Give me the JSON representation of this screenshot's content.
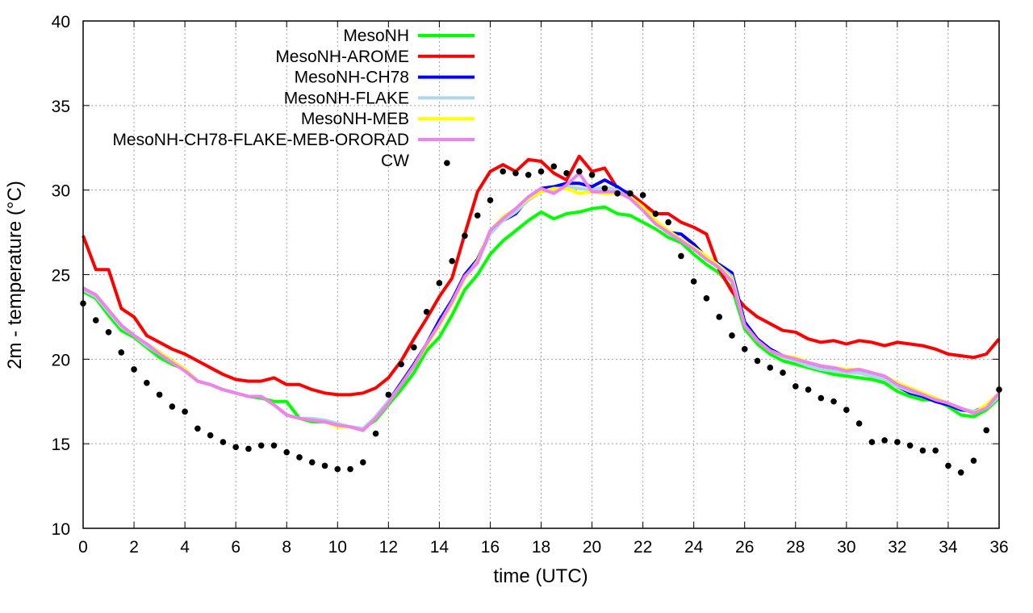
{
  "chart_data": {
    "type": "line",
    "xlabel": "time (UTC)",
    "ylabel": "2m - temperature (°C)",
    "xlim": [
      0,
      36
    ],
    "ylim": [
      10,
      40
    ],
    "xticks": [
      "0",
      "2",
      "4",
      "6",
      "8",
      "10",
      "12",
      "14",
      "16",
      "18",
      "20",
      "22",
      "24",
      "26",
      "28",
      "30",
      "32",
      "34",
      "36"
    ],
    "yticks": [
      "10",
      "15",
      "20",
      "25",
      "30",
      "35",
      "40"
    ],
    "grid": true,
    "legend_position": "top-left",
    "x": [
      0,
      0.5,
      1,
      1.5,
      2,
      2.5,
      3,
      3.5,
      4,
      4.5,
      5,
      5.5,
      6,
      6.5,
      7,
      7.5,
      8,
      8.5,
      9,
      9.5,
      10,
      10.5,
      11,
      11.5,
      12,
      12.5,
      13,
      13.5,
      14,
      14.5,
      15,
      15.5,
      16,
      16.5,
      17,
      17.5,
      18,
      18.5,
      19,
      19.5,
      20,
      20.5,
      21,
      21.5,
      22,
      22.5,
      23,
      23.5,
      24,
      24.5,
      25,
      25.5,
      26,
      26.5,
      27,
      27.5,
      28,
      28.5,
      29,
      29.5,
      30,
      30.5,
      31,
      31.5,
      32,
      32.5,
      33,
      33.5,
      34,
      34.5,
      35,
      35.5,
      36
    ],
    "series": [
      {
        "name": "MesoNH",
        "color": "#00ff00",
        "style": "line",
        "values": [
          24.0,
          23.6,
          22.6,
          21.7,
          21.3,
          20.7,
          20.1,
          19.7,
          19.4,
          18.7,
          18.5,
          18.2,
          18.0,
          17.8,
          17.7,
          17.5,
          17.5,
          16.5,
          16.3,
          16.3,
          16.1,
          16.0,
          15.9,
          16.4,
          17.3,
          18.2,
          19.2,
          20.5,
          21.3,
          22.6,
          24.1,
          25.0,
          26.2,
          27.0,
          27.6,
          28.2,
          28.7,
          28.3,
          28.6,
          28.7,
          28.9,
          29.0,
          28.6,
          28.5,
          28.1,
          27.7,
          27.2,
          26.9,
          26.2,
          25.6,
          25.1,
          24.2,
          21.8,
          20.9,
          20.3,
          19.9,
          19.7,
          19.5,
          19.3,
          19.1,
          19.0,
          18.9,
          18.8,
          18.6,
          18.1,
          17.8,
          17.6,
          17.6,
          17.2,
          16.7,
          16.6,
          17.0,
          17.7
        ]
      },
      {
        "name": "MesoNH-AROME",
        "color": "#ff0000",
        "style": "line",
        "values": [
          27.3,
          25.3,
          25.3,
          23.0,
          22.5,
          21.4,
          21.0,
          20.6,
          20.3,
          19.9,
          19.5,
          19.1,
          18.8,
          18.7,
          18.7,
          18.9,
          18.5,
          18.5,
          18.2,
          18.0,
          17.9,
          17.9,
          18.0,
          18.3,
          18.9,
          19.9,
          21.2,
          22.4,
          23.7,
          24.8,
          27.4,
          29.9,
          31.1,
          31.5,
          31.1,
          31.8,
          31.7,
          31.0,
          30.6,
          32.0,
          31.1,
          31.3,
          30.1,
          29.8,
          29.2,
          28.6,
          28.6,
          28.1,
          27.8,
          27.4,
          25.3,
          24.0,
          23.1,
          22.5,
          22.1,
          21.7,
          21.6,
          21.2,
          21.0,
          21.1,
          20.9,
          21.1,
          21.0,
          20.8,
          21.0,
          20.9,
          20.8,
          20.6,
          20.3,
          20.2,
          20.1,
          20.3,
          21.2
        ]
      },
      {
        "name": "MesoNH-CH78",
        "color": "#0000ff",
        "style": "line",
        "values": [
          24.2,
          23.8,
          22.9,
          22.0,
          21.4,
          20.9,
          20.4,
          19.9,
          19.4,
          18.7,
          18.5,
          18.2,
          18.0,
          17.8,
          17.8,
          17.3,
          16.7,
          16.5,
          16.4,
          16.3,
          16.1,
          16.0,
          15.8,
          16.6,
          17.5,
          18.6,
          19.7,
          20.9,
          22.3,
          23.5,
          25.0,
          25.9,
          27.5,
          28.2,
          28.6,
          29.5,
          30.1,
          30.2,
          30.4,
          30.4,
          30.2,
          30.6,
          30.2,
          29.7,
          28.9,
          28.1,
          27.5,
          27.4,
          26.8,
          26.0,
          25.6,
          25.1,
          22.2,
          21.2,
          20.6,
          20.2,
          20.0,
          19.7,
          19.5,
          19.4,
          19.2,
          19.2,
          19.0,
          18.8,
          18.4,
          18.0,
          17.8,
          17.5,
          17.3,
          17.0,
          16.9,
          17.2,
          17.8
        ]
      },
      {
        "name": "MesoNH-FLAKE",
        "color": "#add8e6",
        "style": "line",
        "values": [
          24.1,
          23.7,
          22.8,
          21.9,
          21.4,
          20.8,
          20.3,
          19.8,
          19.4,
          18.7,
          18.5,
          18.2,
          18.0,
          17.8,
          17.8,
          17.3,
          16.7,
          16.5,
          16.5,
          16.4,
          16.2,
          16.0,
          15.9,
          16.6,
          17.5,
          18.5,
          19.6,
          20.8,
          22.1,
          23.3,
          24.8,
          25.8,
          27.4,
          28.2,
          28.7,
          29.4,
          29.9,
          30.0,
          30.2,
          30.1,
          30.0,
          30.2,
          30.0,
          29.5,
          28.9,
          28.1,
          27.4,
          27.1,
          26.6,
          25.9,
          25.5,
          24.9,
          22.0,
          21.1,
          20.5,
          20.1,
          19.9,
          19.6,
          19.4,
          19.3,
          19.2,
          19.2,
          19.0,
          18.8,
          18.4,
          18.1,
          17.9,
          17.7,
          17.4,
          17.1,
          16.9,
          17.1,
          17.8
        ]
      },
      {
        "name": "MesoNH-MEB",
        "color": "#ffff00",
        "style": "line",
        "values": [
          24.2,
          23.8,
          22.9,
          22.0,
          21.4,
          20.9,
          20.4,
          19.9,
          19.4,
          18.7,
          18.5,
          18.2,
          18.0,
          17.8,
          17.8,
          17.3,
          16.7,
          16.5,
          16.4,
          16.3,
          16.0,
          16.0,
          15.8,
          16.5,
          17.4,
          18.5,
          19.6,
          20.8,
          22.0,
          23.3,
          24.8,
          25.8,
          27.6,
          28.4,
          28.9,
          29.5,
          29.9,
          30.1,
          30.1,
          29.8,
          29.9,
          29.8,
          29.8,
          29.6,
          29.0,
          28.2,
          27.6,
          27.1,
          26.6,
          26.1,
          25.5,
          24.7,
          22.0,
          21.1,
          20.5,
          20.2,
          20.1,
          19.8,
          19.6,
          19.5,
          19.4,
          19.4,
          19.2,
          19.0,
          18.6,
          18.3,
          18.0,
          17.7,
          17.4,
          17.1,
          16.8,
          17.3,
          18.0
        ]
      },
      {
        "name": "MesoNH-CH78-FLAKE-MEB-ORORAD",
        "color": "#ee82ee",
        "style": "line",
        "values": [
          24.2,
          23.8,
          22.9,
          22.0,
          21.4,
          20.9,
          20.3,
          19.8,
          19.3,
          18.7,
          18.5,
          18.2,
          18.0,
          17.8,
          17.8,
          17.3,
          16.7,
          16.5,
          16.4,
          16.3,
          16.1,
          16.0,
          15.8,
          16.5,
          17.4,
          18.5,
          19.6,
          20.9,
          22.1,
          23.4,
          24.9,
          25.7,
          27.6,
          28.3,
          28.9,
          29.6,
          30.1,
          29.8,
          30.3,
          31.0,
          29.9,
          29.9,
          29.9,
          29.5,
          28.8,
          28.0,
          27.5,
          27.0,
          26.5,
          25.9,
          25.4,
          24.6,
          22.0,
          21.1,
          20.5,
          20.2,
          20.0,
          19.8,
          19.6,
          19.5,
          19.3,
          19.4,
          19.2,
          19.0,
          18.5,
          18.2,
          17.9,
          17.6,
          17.4,
          17.1,
          16.8,
          17.1,
          18.0
        ]
      },
      {
        "name": "CW",
        "color": "#000000",
        "style": "points",
        "values": [
          23.3,
          22.3,
          21.6,
          20.4,
          19.4,
          18.6,
          17.9,
          17.2,
          16.9,
          15.9,
          15.5,
          15.1,
          14.8,
          14.7,
          14.9,
          14.9,
          14.5,
          14.2,
          13.9,
          13.7,
          13.5,
          13.5,
          13.9,
          15.6,
          17.9,
          19.7,
          20.7,
          22.8,
          24.5,
          25.8,
          27.3,
          28.5,
          29.4,
          31.1,
          31.0,
          30.9,
          31.1,
          31.4,
          31.0,
          31.1,
          30.9,
          30.1,
          29.8,
          29.8,
          29.7,
          28.6,
          28.1,
          26.1,
          24.6,
          23.6,
          22.5,
          21.4,
          20.6,
          19.9,
          19.5,
          19.2,
          18.4,
          18.2,
          17.7,
          17.5,
          17.0,
          16.2,
          15.1,
          15.2,
          15.1,
          14.9,
          14.6,
          14.6,
          13.7,
          13.3,
          14.0,
          15.8,
          18.2
        ]
      }
    ],
    "extra_points": [
      {
        "x": 14.3,
        "y": 31.6
      }
    ]
  }
}
